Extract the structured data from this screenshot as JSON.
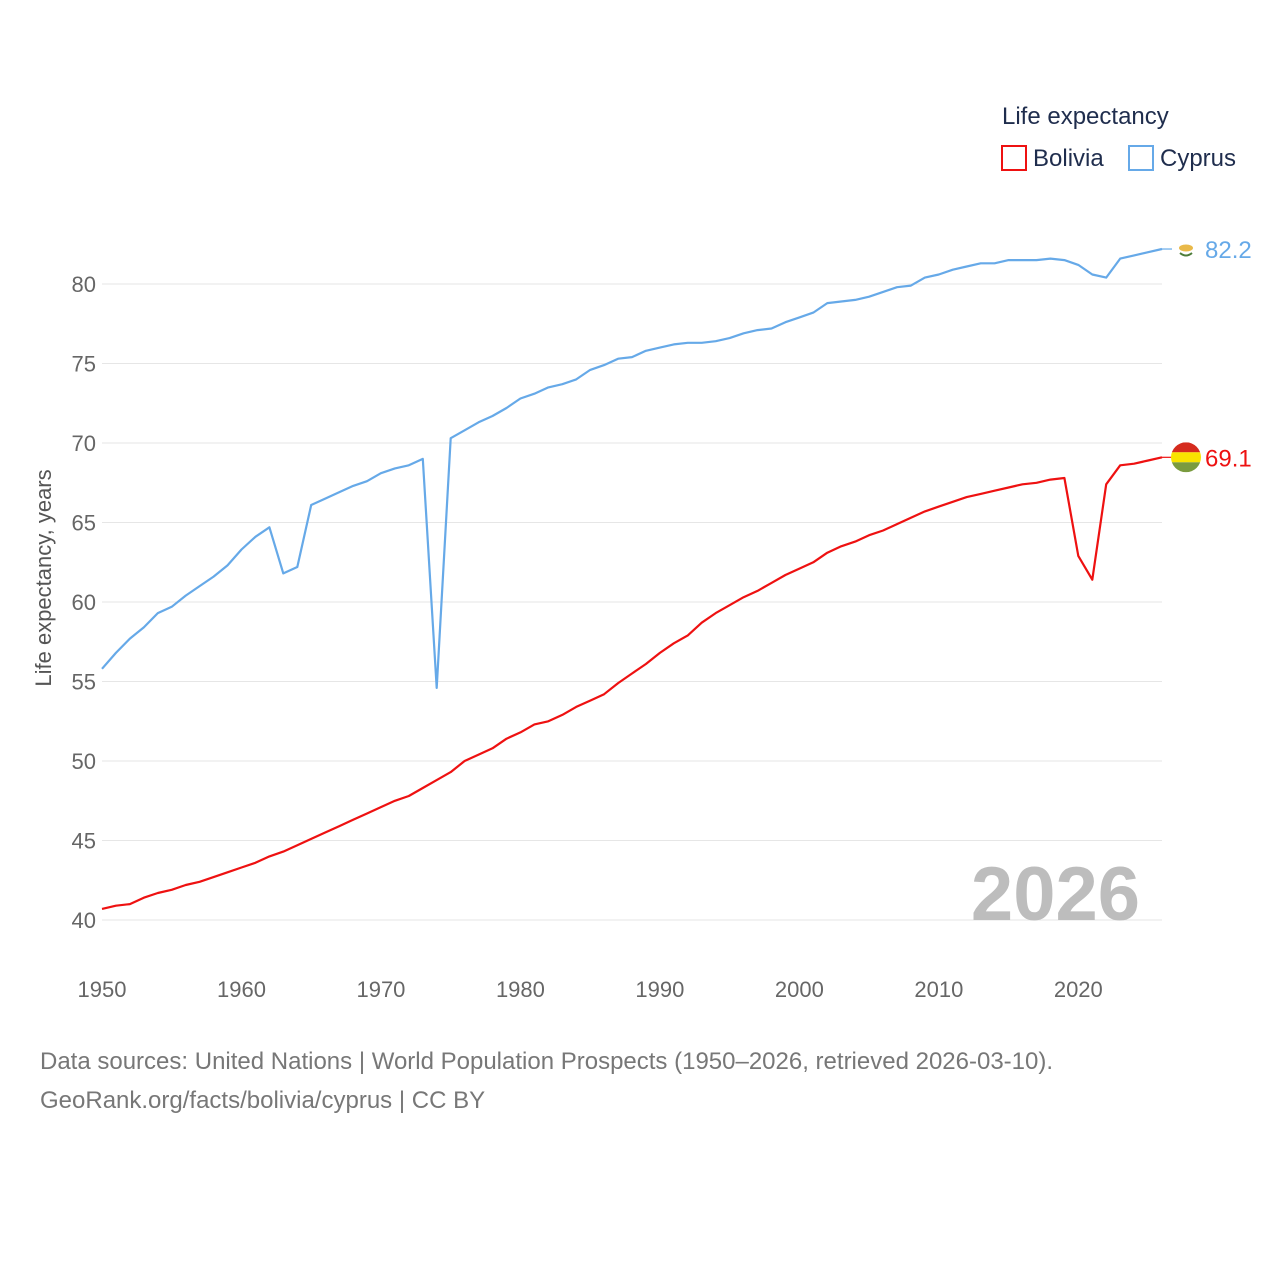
{
  "chart_data": {
    "type": "line",
    "legend_title": "Life expectancy",
    "ylabel": "Life expectancy, years",
    "xlabel": "",
    "ylim": [
      40,
      82.2
    ],
    "xlim": [
      1950,
      2026
    ],
    "yticks": [
      40,
      45,
      50,
      55,
      60,
      65,
      70,
      75,
      80
    ],
    "xticks": [
      1950,
      1960,
      1970,
      1980,
      1990,
      2000,
      2010,
      2020
    ],
    "year_stamp": "2026",
    "legend_placement": "top-right",
    "series": [
      {
        "name": "Bolivia",
        "color": "#ee1111",
        "end_label": "69.1",
        "flag": "bolivia-flag",
        "points": [
          [
            1950,
            40.7
          ],
          [
            1951,
            40.9
          ],
          [
            1952,
            41.0
          ],
          [
            1953,
            41.4
          ],
          [
            1954,
            41.7
          ],
          [
            1955,
            41.9
          ],
          [
            1956,
            42.2
          ],
          [
            1957,
            42.4
          ],
          [
            1958,
            42.7
          ],
          [
            1959,
            43.0
          ],
          [
            1960,
            43.3
          ],
          [
            1961,
            43.6
          ],
          [
            1962,
            44.0
          ],
          [
            1963,
            44.3
          ],
          [
            1964,
            44.7
          ],
          [
            1965,
            45.1
          ],
          [
            1966,
            45.5
          ],
          [
            1967,
            45.9
          ],
          [
            1968,
            46.3
          ],
          [
            1969,
            46.7
          ],
          [
            1970,
            47.1
          ],
          [
            1971,
            47.5
          ],
          [
            1972,
            47.8
          ],
          [
            1973,
            48.3
          ],
          [
            1974,
            48.8
          ],
          [
            1975,
            49.3
          ],
          [
            1976,
            50.0
          ],
          [
            1977,
            50.4
          ],
          [
            1978,
            50.8
          ],
          [
            1979,
            51.4
          ],
          [
            1980,
            51.8
          ],
          [
            1981,
            52.3
          ],
          [
            1982,
            52.5
          ],
          [
            1983,
            52.9
          ],
          [
            1984,
            53.4
          ],
          [
            1985,
            53.8
          ],
          [
            1986,
            54.2
          ],
          [
            1987,
            54.9
          ],
          [
            1988,
            55.5
          ],
          [
            1989,
            56.1
          ],
          [
            1990,
            56.8
          ],
          [
            1991,
            57.4
          ],
          [
            1992,
            57.9
          ],
          [
            1993,
            58.7
          ],
          [
            1994,
            59.3
          ],
          [
            1995,
            59.8
          ],
          [
            1996,
            60.3
          ],
          [
            1997,
            60.7
          ],
          [
            1998,
            61.2
          ],
          [
            1999,
            61.7
          ],
          [
            2000,
            62.1
          ],
          [
            2001,
            62.5
          ],
          [
            2002,
            63.1
          ],
          [
            2003,
            63.5
          ],
          [
            2004,
            63.8
          ],
          [
            2005,
            64.2
          ],
          [
            2006,
            64.5
          ],
          [
            2007,
            64.9
          ],
          [
            2008,
            65.3
          ],
          [
            2009,
            65.7
          ],
          [
            2010,
            66.0
          ],
          [
            2011,
            66.3
          ],
          [
            2012,
            66.6
          ],
          [
            2013,
            66.8
          ],
          [
            2014,
            67.0
          ],
          [
            2015,
            67.2
          ],
          [
            2016,
            67.4
          ],
          [
            2017,
            67.5
          ],
          [
            2018,
            67.7
          ],
          [
            2019,
            67.8
          ],
          [
            2020,
            62.9
          ],
          [
            2021,
            61.4
          ],
          [
            2022,
            67.4
          ],
          [
            2023,
            68.6
          ],
          [
            2024,
            68.7
          ],
          [
            2025,
            68.9
          ],
          [
            2026,
            69.1
          ]
        ]
      },
      {
        "name": "Cyprus",
        "color": "#66a9e8",
        "end_label": "82.2",
        "flag": "cyprus-flag",
        "points": [
          [
            1950,
            55.8
          ],
          [
            1951,
            56.8
          ],
          [
            1952,
            57.7
          ],
          [
            1953,
            58.4
          ],
          [
            1954,
            59.3
          ],
          [
            1955,
            59.7
          ],
          [
            1956,
            60.4
          ],
          [
            1957,
            61.0
          ],
          [
            1958,
            61.6
          ],
          [
            1959,
            62.3
          ],
          [
            1960,
            63.3
          ],
          [
            1961,
            64.1
          ],
          [
            1962,
            64.7
          ],
          [
            1963,
            61.8
          ],
          [
            1964,
            62.2
          ],
          [
            1965,
            66.1
          ],
          [
            1966,
            66.5
          ],
          [
            1967,
            66.9
          ],
          [
            1968,
            67.3
          ],
          [
            1969,
            67.6
          ],
          [
            1970,
            68.1
          ],
          [
            1971,
            68.4
          ],
          [
            1972,
            68.6
          ],
          [
            1973,
            69.0
          ],
          [
            1974,
            54.6
          ],
          [
            1975,
            70.3
          ],
          [
            1976,
            70.8
          ],
          [
            1977,
            71.3
          ],
          [
            1978,
            71.7
          ],
          [
            1979,
            72.2
          ],
          [
            1980,
            72.8
          ],
          [
            1981,
            73.1
          ],
          [
            1982,
            73.5
          ],
          [
            1983,
            73.7
          ],
          [
            1984,
            74.0
          ],
          [
            1985,
            74.6
          ],
          [
            1986,
            74.9
          ],
          [
            1987,
            75.3
          ],
          [
            1988,
            75.4
          ],
          [
            1989,
            75.8
          ],
          [
            1990,
            76.0
          ],
          [
            1991,
            76.2
          ],
          [
            1992,
            76.3
          ],
          [
            1993,
            76.3
          ],
          [
            1994,
            76.4
          ],
          [
            1995,
            76.6
          ],
          [
            1996,
            76.9
          ],
          [
            1997,
            77.1
          ],
          [
            1998,
            77.2
          ],
          [
            1999,
            77.6
          ],
          [
            2000,
            77.9
          ],
          [
            2001,
            78.2
          ],
          [
            2002,
            78.8
          ],
          [
            2003,
            78.9
          ],
          [
            2004,
            79.0
          ],
          [
            2005,
            79.2
          ],
          [
            2006,
            79.5
          ],
          [
            2007,
            79.8
          ],
          [
            2008,
            79.9
          ],
          [
            2009,
            80.4
          ],
          [
            2010,
            80.6
          ],
          [
            2011,
            80.9
          ],
          [
            2012,
            81.1
          ],
          [
            2013,
            81.3
          ],
          [
            2014,
            81.3
          ],
          [
            2015,
            81.5
          ],
          [
            2016,
            81.5
          ],
          [
            2017,
            81.5
          ],
          [
            2018,
            81.6
          ],
          [
            2019,
            81.5
          ],
          [
            2020,
            81.2
          ],
          [
            2021,
            80.6
          ],
          [
            2022,
            80.4
          ],
          [
            2023,
            81.6
          ],
          [
            2024,
            81.8
          ],
          [
            2025,
            82.0
          ],
          [
            2026,
            82.2
          ]
        ]
      }
    ]
  },
  "footer": {
    "line1": "Data sources: United Nations | World Population Prospects (1950–2026, retrieved 2026-03-10).",
    "line2": "GeoRank.org/facts/bolivia/cyprus | CC BY"
  }
}
